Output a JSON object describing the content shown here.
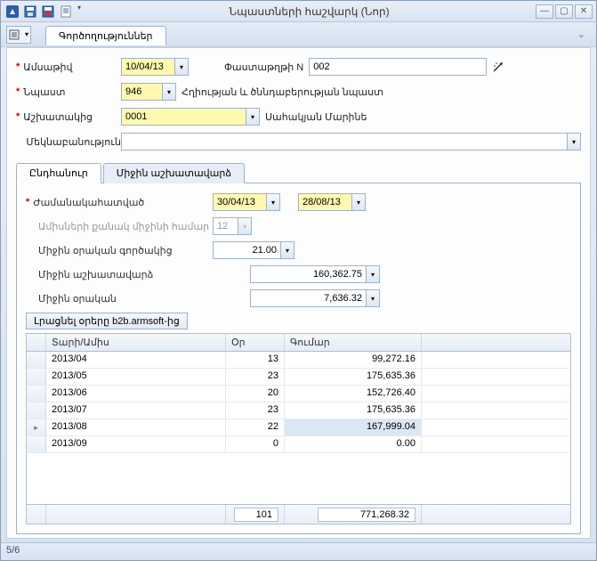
{
  "window": {
    "title": "Նպաստների հաշվարկ (Նոր)"
  },
  "toolbar": {
    "tab_label": "Գործողություններ"
  },
  "form": {
    "date_label": "Ամսաթիվ",
    "date_value": "10/04/13",
    "docnum_label": "Փաստաթղթի N",
    "docnum_value": "002",
    "benefit_label": "Նպաստ",
    "benefit_code": "946",
    "benefit_desc": "Հղիության և ծննդաբերության նպաստ",
    "employee_label": "Աշխատակից",
    "employee_code": "0001",
    "employee_name": "Սահակյան Մարինե",
    "comment_label": "Մեկնաբանություն",
    "comment_value": ""
  },
  "tabs": {
    "general": "Ընդհանուր",
    "avg_salary": "Միջին աշխատավարձ"
  },
  "panel": {
    "period_label": "Ժամանակահատված",
    "period_from": "30/04/13",
    "period_to": "28/08/13",
    "months_label": "Ամիսների քանակ միջինի համար",
    "months_value": "12",
    "avg_coef_label": "Միջին օրական գործակից",
    "avg_coef_value": "21.00",
    "avg_salary_label": "Միջին աշխատավարձ",
    "avg_salary_value": "160,362.75",
    "avg_daily_label": "Միջին օրական",
    "avg_daily_value": "7,636.32",
    "fill_button": "Լրացնել օրերը b2b.armsoft-ից"
  },
  "grid": {
    "col1": "Տարի/Ամիս",
    "col2": "Օր",
    "col3": "Գումար",
    "rows": [
      {
        "ym": "2013/04",
        "d": "13",
        "amt": "99,272.16",
        "sel": false
      },
      {
        "ym": "2013/05",
        "d": "23",
        "amt": "175,635.36",
        "sel": false
      },
      {
        "ym": "2013/06",
        "d": "20",
        "amt": "152,726.40",
        "sel": false
      },
      {
        "ym": "2013/07",
        "d": "23",
        "amt": "175,635.36",
        "sel": false
      },
      {
        "ym": "2013/08",
        "d": "22",
        "amt": "167,999.04",
        "sel": true
      },
      {
        "ym": "2013/09",
        "d": "0",
        "amt": "0.00",
        "sel": false
      }
    ],
    "sum_days": "101",
    "sum_amt": "771,268.32"
  },
  "status": "5/6",
  "colors": {
    "highlight": "#fff9b0",
    "border": "#9db2cc",
    "sel_bg": "#dce7f5"
  }
}
